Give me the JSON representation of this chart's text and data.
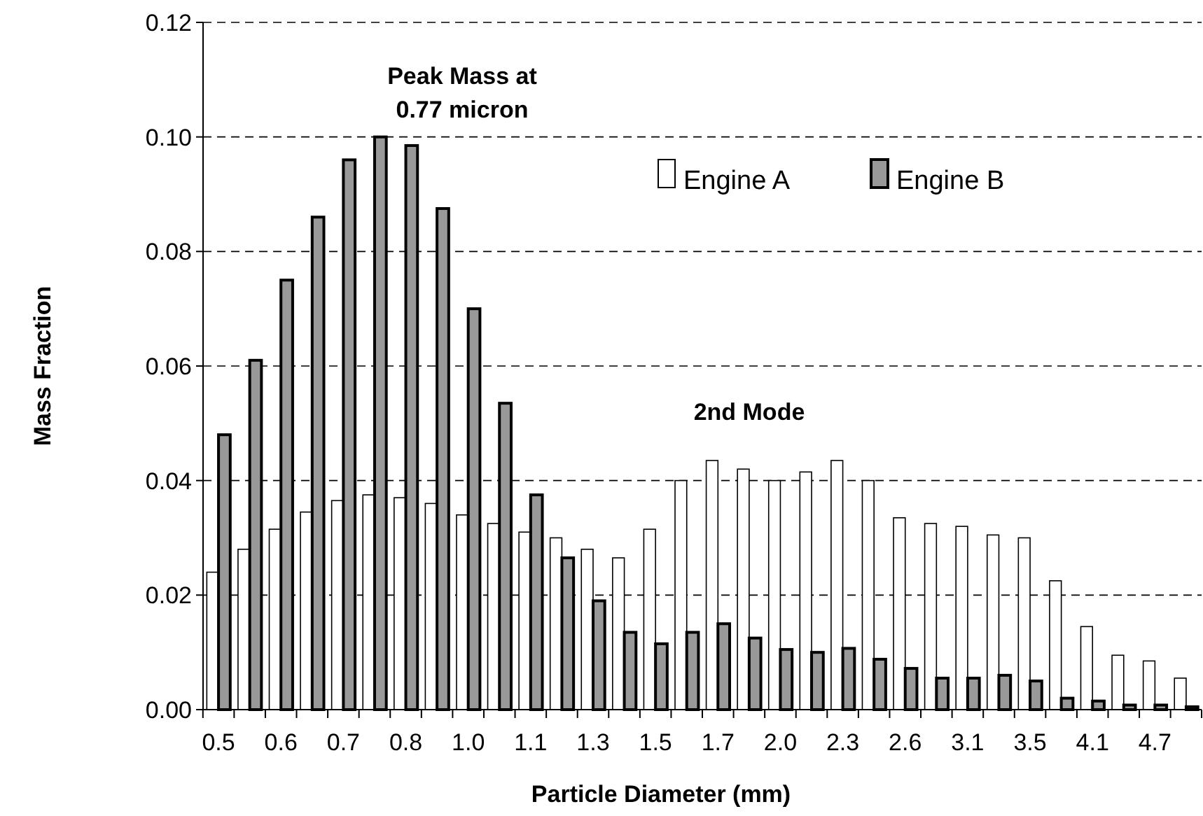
{
  "chart_data": {
    "type": "bar",
    "xlabel": "Particle Diameter (mm)",
    "ylabel": "Mass Fraction",
    "categories": [
      "0.5",
      null,
      "0.6",
      null,
      "0.7",
      null,
      "0.8",
      null,
      "1.0",
      null,
      "1.1",
      null,
      "1.3",
      null,
      "1.5",
      null,
      "1.7",
      null,
      "2.0",
      null,
      "2.3",
      null,
      "2.6",
      null,
      "3.1",
      null,
      "3.5",
      null,
      "4.1",
      null,
      "4.7",
      null
    ],
    "series": [
      {
        "name": "Engine A",
        "color": "#ffffff",
        "values": [
          0.024,
          0.028,
          0.0315,
          0.0345,
          0.0365,
          0.0375,
          0.037,
          0.036,
          0.034,
          0.0325,
          0.031,
          0.03,
          0.028,
          0.0265,
          0.0315,
          0.04,
          0.0435,
          0.042,
          0.04,
          0.0415,
          0.0435,
          0.04,
          0.0335,
          0.0325,
          0.032,
          0.0305,
          0.03,
          0.0225,
          0.0145,
          0.0095,
          0.0085,
          0.0055
        ]
      },
      {
        "name": "Engine B",
        "color": "#999999",
        "values": [
          0.048,
          0.061,
          0.075,
          0.086,
          0.096,
          0.1,
          0.0985,
          0.0875,
          0.07,
          0.0535,
          0.0375,
          0.0265,
          0.019,
          0.0135,
          0.0115,
          0.0135,
          0.015,
          0.0125,
          0.0105,
          0.01,
          0.0107,
          0.0088,
          0.0072,
          0.0055,
          0.0055,
          0.006,
          0.005,
          0.002,
          0.0015,
          0.0008,
          0.0008,
          0.0005
        ]
      }
    ],
    "ylim": [
      0,
      0.12
    ],
    "yticks": [
      {
        "value": 0,
        "label": "0.00"
      },
      {
        "value": 0.02,
        "label": "0.02"
      },
      {
        "value": 0.04,
        "label": "0.04"
      },
      {
        "value": 0.06,
        "label": "0.06"
      },
      {
        "value": 0.08,
        "label": "0.08"
      },
      {
        "value": 0.1,
        "label": "0.10"
      },
      {
        "value": 0.12,
        "label": "0.12"
      }
    ],
    "grid": "y",
    "legend": "top right",
    "annotations": [
      "Peak Mass at\n0.77 micron",
      "2nd Mode"
    ]
  }
}
